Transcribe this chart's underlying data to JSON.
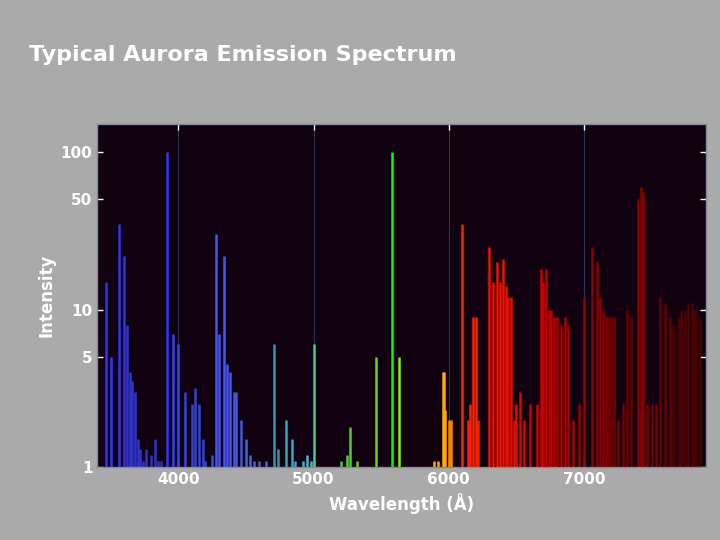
{
  "title": "Typical Aurora Emission Spectrum",
  "xlabel": "Wavelength (Å)",
  "ylabel": "Intensity",
  "fig_bg_color": "#aaaaaa",
  "title_color": "#ffffff",
  "axis_bg_color": "#100010",
  "ylim_log": [
    1,
    150
  ],
  "xlim": [
    3400,
    7900
  ],
  "yticks": [
    1,
    5,
    10,
    50,
    100
  ],
  "xticks": [
    4000,
    5000,
    6000,
    7000
  ],
  "grid_color": "#333355",
  "lines": [
    {
      "wl": 3466,
      "intensity": 15,
      "color": "#3333ff"
    },
    {
      "wl": 3500,
      "intensity": 5,
      "color": "#3333ff"
    },
    {
      "wl": 3560,
      "intensity": 35,
      "color": "#3333ee"
    },
    {
      "wl": 3600,
      "intensity": 22,
      "color": "#3333dd"
    },
    {
      "wl": 3620,
      "intensity": 8,
      "color": "#3333cc"
    },
    {
      "wl": 3640,
      "intensity": 4,
      "color": "#3333cc"
    },
    {
      "wl": 3660,
      "intensity": 3.5,
      "color": "#3333cc"
    },
    {
      "wl": 3680,
      "intensity": 3,
      "color": "#3333cc"
    },
    {
      "wl": 3700,
      "intensity": 1.5,
      "color": "#3333cc"
    },
    {
      "wl": 3720,
      "intensity": 1.3,
      "color": "#3333cc"
    },
    {
      "wl": 3740,
      "intensity": 1.1,
      "color": "#3333cc"
    },
    {
      "wl": 3760,
      "intensity": 1.3,
      "color": "#3333bb"
    },
    {
      "wl": 3800,
      "intensity": 1.2,
      "color": "#3333bb"
    },
    {
      "wl": 3830,
      "intensity": 1.5,
      "color": "#3333bb"
    },
    {
      "wl": 3850,
      "intensity": 1.1,
      "color": "#3333bb"
    },
    {
      "wl": 3870,
      "intensity": 1.1,
      "color": "#3333aa"
    },
    {
      "wl": 3914,
      "intensity": 100,
      "color": "#3333ff"
    },
    {
      "wl": 3960,
      "intensity": 7,
      "color": "#3344ee"
    },
    {
      "wl": 3995,
      "intensity": 6,
      "color": "#3344ee"
    },
    {
      "wl": 4050,
      "intensity": 3,
      "color": "#3344dd"
    },
    {
      "wl": 4100,
      "intensity": 2.5,
      "color": "#3344cc"
    },
    {
      "wl": 4120,
      "intensity": 3.2,
      "color": "#3344cc"
    },
    {
      "wl": 4150,
      "intensity": 2.5,
      "color": "#3344cc"
    },
    {
      "wl": 4180,
      "intensity": 1.5,
      "color": "#3344cc"
    },
    {
      "wl": 4200,
      "intensity": 1.1,
      "color": "#3344cc"
    },
    {
      "wl": 4250,
      "intensity": 1.2,
      "color": "#3355cc"
    },
    {
      "wl": 4278,
      "intensity": 30,
      "color": "#4455ff"
    },
    {
      "wl": 4300,
      "intensity": 7,
      "color": "#4455ee"
    },
    {
      "wl": 4340,
      "intensity": 22,
      "color": "#4455ff"
    },
    {
      "wl": 4360,
      "intensity": 4.5,
      "color": "#4455ee"
    },
    {
      "wl": 4380,
      "intensity": 4,
      "color": "#4455ee"
    },
    {
      "wl": 4410,
      "intensity": 3,
      "color": "#4455dd"
    },
    {
      "wl": 4430,
      "intensity": 3,
      "color": "#4455dd"
    },
    {
      "wl": 4460,
      "intensity": 2,
      "color": "#4455dd"
    },
    {
      "wl": 4500,
      "intensity": 1.5,
      "color": "#4466cc"
    },
    {
      "wl": 4530,
      "intensity": 1.2,
      "color": "#4466cc"
    },
    {
      "wl": 4560,
      "intensity": 1.1,
      "color": "#4466cc"
    },
    {
      "wl": 4600,
      "intensity": 1.1,
      "color": "#4466bb"
    },
    {
      "wl": 4650,
      "intensity": 1.1,
      "color": "#4466bb"
    },
    {
      "wl": 4709,
      "intensity": 6,
      "color": "#3399aa"
    },
    {
      "wl": 4740,
      "intensity": 1.3,
      "color": "#3399aa"
    },
    {
      "wl": 4800,
      "intensity": 2,
      "color": "#33aabb"
    },
    {
      "wl": 4840,
      "intensity": 1.5,
      "color": "#33aacc"
    },
    {
      "wl": 4861,
      "intensity": 1.1,
      "color": "#33aacc"
    },
    {
      "wl": 4920,
      "intensity": 1.1,
      "color": "#33bbcc"
    },
    {
      "wl": 4950,
      "intensity": 1.2,
      "color": "#44bbcc"
    },
    {
      "wl": 4980,
      "intensity": 1.1,
      "color": "#44bbcc"
    },
    {
      "wl": 5005,
      "intensity": 6,
      "color": "#44cc88"
    },
    {
      "wl": 5200,
      "intensity": 1.1,
      "color": "#44cc44"
    },
    {
      "wl": 5250,
      "intensity": 1.2,
      "color": "#55cc33"
    },
    {
      "wl": 5270,
      "intensity": 1.8,
      "color": "#55cc33"
    },
    {
      "wl": 5320,
      "intensity": 1.1,
      "color": "#66cc22"
    },
    {
      "wl": 5460,
      "intensity": 5,
      "color": "#66dd00"
    },
    {
      "wl": 5577,
      "intensity": 100,
      "color": "#00ff00"
    },
    {
      "wl": 5630,
      "intensity": 5,
      "color": "#88ee00"
    },
    {
      "wl": 5890,
      "intensity": 1.1,
      "color": "#ffaa00"
    },
    {
      "wl": 5920,
      "intensity": 1.1,
      "color": "#ffaa00"
    },
    {
      "wl": 5958,
      "intensity": 4,
      "color": "#ffaa00"
    },
    {
      "wl": 5965,
      "intensity": 4,
      "color": "#ffaa00"
    },
    {
      "wl": 5975,
      "intensity": 2.3,
      "color": "#ffaa00"
    },
    {
      "wl": 6000,
      "intensity": 2,
      "color": "#ff8800"
    },
    {
      "wl": 6020,
      "intensity": 2,
      "color": "#ff8800"
    },
    {
      "wl": 6100,
      "intensity": 35,
      "color": "#ff2200"
    },
    {
      "wl": 6140,
      "intensity": 2,
      "color": "#ff2200"
    },
    {
      "wl": 6160,
      "intensity": 2.5,
      "color": "#ff2200"
    },
    {
      "wl": 6180,
      "intensity": 9,
      "color": "#ff2200"
    },
    {
      "wl": 6200,
      "intensity": 9,
      "color": "#ff2200"
    },
    {
      "wl": 6220,
      "intensity": 2,
      "color": "#ee2200"
    },
    {
      "wl": 6300,
      "intensity": 25,
      "color": "#ee1100"
    },
    {
      "wl": 6330,
      "intensity": 15,
      "color": "#ee1100"
    },
    {
      "wl": 6360,
      "intensity": 20,
      "color": "#ee1100"
    },
    {
      "wl": 6380,
      "intensity": 15,
      "color": "#ee1100"
    },
    {
      "wl": 6400,
      "intensity": 21,
      "color": "#ee1100"
    },
    {
      "wl": 6420,
      "intensity": 14,
      "color": "#ee1100"
    },
    {
      "wl": 6440,
      "intensity": 12,
      "color": "#dd1100"
    },
    {
      "wl": 6460,
      "intensity": 12,
      "color": "#dd1100"
    },
    {
      "wl": 6480,
      "intensity": 2,
      "color": "#dd1100"
    },
    {
      "wl": 6500,
      "intensity": 2.5,
      "color": "#dd1100"
    },
    {
      "wl": 6530,
      "intensity": 3,
      "color": "#dd0000"
    },
    {
      "wl": 6560,
      "intensity": 2,
      "color": "#dd0000"
    },
    {
      "wl": 6600,
      "intensity": 2.5,
      "color": "#cc0000"
    },
    {
      "wl": 6650,
      "intensity": 2.5,
      "color": "#cc0000"
    },
    {
      "wl": 6680,
      "intensity": 18,
      "color": "#cc0000"
    },
    {
      "wl": 6700,
      "intensity": 15,
      "color": "#cc0000"
    },
    {
      "wl": 6720,
      "intensity": 18,
      "color": "#bb0000"
    },
    {
      "wl": 6740,
      "intensity": 10,
      "color": "#bb0000"
    },
    {
      "wl": 6760,
      "intensity": 10,
      "color": "#bb0000"
    },
    {
      "wl": 6780,
      "intensity": 9,
      "color": "#bb0000"
    },
    {
      "wl": 6800,
      "intensity": 9,
      "color": "#aa0000"
    },
    {
      "wl": 6830,
      "intensity": 8,
      "color": "#aa0000"
    },
    {
      "wl": 6860,
      "intensity": 9,
      "color": "#aa0000"
    },
    {
      "wl": 6880,
      "intensity": 8,
      "color": "#aa0000"
    },
    {
      "wl": 6920,
      "intensity": 2,
      "color": "#aa0000"
    },
    {
      "wl": 6960,
      "intensity": 2.5,
      "color": "#990000"
    },
    {
      "wl": 7000,
      "intensity": 12,
      "color": "#990000"
    },
    {
      "wl": 7060,
      "intensity": 25,
      "color": "#880000"
    },
    {
      "wl": 7100,
      "intensity": 20,
      "color": "#880000"
    },
    {
      "wl": 7120,
      "intensity": 12,
      "color": "#880000"
    },
    {
      "wl": 7140,
      "intensity": 10,
      "color": "#880000"
    },
    {
      "wl": 7160,
      "intensity": 9,
      "color": "#880000"
    },
    {
      "wl": 7180,
      "intensity": 9,
      "color": "#770000"
    },
    {
      "wl": 7200,
      "intensity": 9,
      "color": "#770000"
    },
    {
      "wl": 7220,
      "intensity": 9,
      "color": "#770000"
    },
    {
      "wl": 7250,
      "intensity": 2,
      "color": "#770000"
    },
    {
      "wl": 7290,
      "intensity": 2.5,
      "color": "#770000"
    },
    {
      "wl": 7320,
      "intensity": 10,
      "color": "#660000"
    },
    {
      "wl": 7350,
      "intensity": 9,
      "color": "#660000"
    },
    {
      "wl": 7400,
      "intensity": 50,
      "color": "#880000"
    },
    {
      "wl": 7420,
      "intensity": 60,
      "color": "#880000"
    },
    {
      "wl": 7440,
      "intensity": 55,
      "color": "#880000"
    },
    {
      "wl": 7470,
      "intensity": 2.5,
      "color": "#770000"
    },
    {
      "wl": 7500,
      "intensity": 2.5,
      "color": "#770000"
    },
    {
      "wl": 7530,
      "intensity": 2.5,
      "color": "#770000"
    },
    {
      "wl": 7560,
      "intensity": 12,
      "color": "#660000"
    },
    {
      "wl": 7600,
      "intensity": 11,
      "color": "#660000"
    },
    {
      "wl": 7640,
      "intensity": 9,
      "color": "#660000"
    },
    {
      "wl": 7660,
      "intensity": 8,
      "color": "#550000"
    },
    {
      "wl": 7700,
      "intensity": 9,
      "color": "#550000"
    },
    {
      "wl": 7720,
      "intensity": 10,
      "color": "#550000"
    },
    {
      "wl": 7750,
      "intensity": 10,
      "color": "#550000"
    },
    {
      "wl": 7770,
      "intensity": 11,
      "color": "#550000"
    },
    {
      "wl": 7800,
      "intensity": 11,
      "color": "#550000"
    },
    {
      "wl": 7820,
      "intensity": 10,
      "color": "#550000"
    },
    {
      "wl": 7850,
      "intensity": 9,
      "color": "#440000"
    }
  ]
}
